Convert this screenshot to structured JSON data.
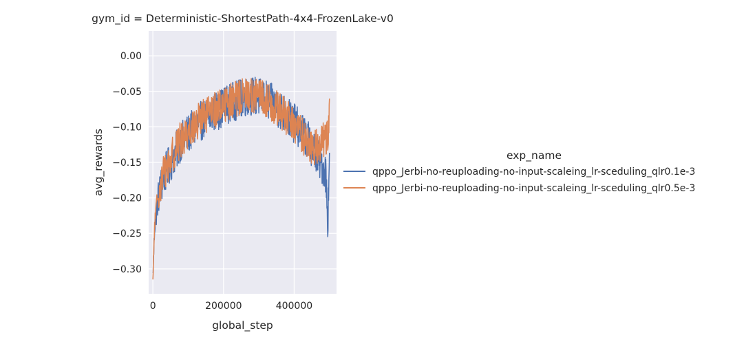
{
  "chart_data": {
    "type": "line",
    "title": "gym_id = Deterministic-ShortestPath-4x4-FrozenLake-v0",
    "xlabel": "global_step",
    "ylabel": "avg_rewards",
    "xlim": [
      -12000,
      520000
    ],
    "ylim": [
      -0.335,
      0.035
    ],
    "xticks": [
      0,
      200000,
      400000
    ],
    "xtick_labels": [
      "0",
      "200000",
      "400000"
    ],
    "yticks": [
      0.0,
      -0.05,
      -0.1,
      -0.15,
      -0.2,
      -0.25,
      -0.3
    ],
    "ytick_labels": [
      "0.00",
      "−0.05",
      "−0.10",
      "−0.15",
      "−0.20",
      "−0.25",
      "−0.30"
    ],
    "grid": true,
    "legend": {
      "title": "exp_name",
      "placement": "right"
    },
    "series": [
      {
        "name": "qppo_Jerbi-no-reuploading-no-input-scaleing_lr-sceduling_qlr0.1e-3",
        "color": "#4c72b0",
        "x": [
          0,
          5000,
          10000,
          15000,
          20000,
          30000,
          40000,
          50000,
          60000,
          70000,
          80000,
          90000,
          100000,
          110000,
          120000,
          130000,
          140000,
          150000,
          160000,
          170000,
          180000,
          190000,
          200000,
          210000,
          220000,
          230000,
          240000,
          250000,
          260000,
          270000,
          280000,
          290000,
          300000,
          310000,
          320000,
          330000,
          340000,
          350000,
          360000,
          370000,
          380000,
          390000,
          400000,
          410000,
          420000,
          430000,
          440000,
          450000,
          460000,
          470000,
          480000,
          490000,
          495000,
          500000
        ],
        "y": [
          -0.31,
          -0.24,
          -0.22,
          -0.2,
          -0.19,
          -0.17,
          -0.16,
          -0.15,
          -0.14,
          -0.13,
          -0.12,
          -0.115,
          -0.11,
          -0.105,
          -0.1,
          -0.095,
          -0.09,
          -0.088,
          -0.085,
          -0.08,
          -0.078,
          -0.075,
          -0.07,
          -0.068,
          -0.066,
          -0.064,
          -0.062,
          -0.06,
          -0.058,
          -0.057,
          -0.056,
          -0.057,
          -0.058,
          -0.06,
          -0.062,
          -0.065,
          -0.068,
          -0.072,
          -0.076,
          -0.08,
          -0.085,
          -0.09,
          -0.095,
          -0.1,
          -0.106,
          -0.112,
          -0.12,
          -0.128,
          -0.136,
          -0.145,
          -0.155,
          -0.165,
          -0.24,
          -0.13
        ],
        "noise": 0.028
      },
      {
        "name": "qppo_Jerbi-no-reuploading-no-input-scaleing_lr-sceduling_qlr0.5e-3",
        "color": "#dd8452",
        "x": [
          0,
          5000,
          10000,
          15000,
          20000,
          30000,
          40000,
          50000,
          60000,
          70000,
          80000,
          90000,
          100000,
          110000,
          120000,
          130000,
          140000,
          150000,
          160000,
          170000,
          180000,
          190000,
          200000,
          210000,
          220000,
          230000,
          240000,
          250000,
          260000,
          270000,
          280000,
          290000,
          300000,
          310000,
          320000,
          330000,
          340000,
          350000,
          360000,
          370000,
          380000,
          390000,
          400000,
          410000,
          420000,
          430000,
          440000,
          450000,
          460000,
          470000,
          480000,
          490000,
          495000,
          500000
        ],
        "y": [
          -0.32,
          -0.235,
          -0.215,
          -0.195,
          -0.185,
          -0.165,
          -0.155,
          -0.145,
          -0.135,
          -0.125,
          -0.118,
          -0.112,
          -0.107,
          -0.1,
          -0.096,
          -0.092,
          -0.088,
          -0.085,
          -0.082,
          -0.078,
          -0.075,
          -0.072,
          -0.068,
          -0.066,
          -0.064,
          -0.062,
          -0.06,
          -0.058,
          -0.056,
          -0.055,
          -0.054,
          -0.055,
          -0.057,
          -0.06,
          -0.062,
          -0.066,
          -0.07,
          -0.074,
          -0.078,
          -0.083,
          -0.088,
          -0.093,
          -0.098,
          -0.104,
          -0.11,
          -0.116,
          -0.122,
          -0.128,
          -0.13,
          -0.125,
          -0.12,
          -0.115,
          -0.11,
          -0.08
        ],
        "noise": 0.026
      }
    ]
  }
}
